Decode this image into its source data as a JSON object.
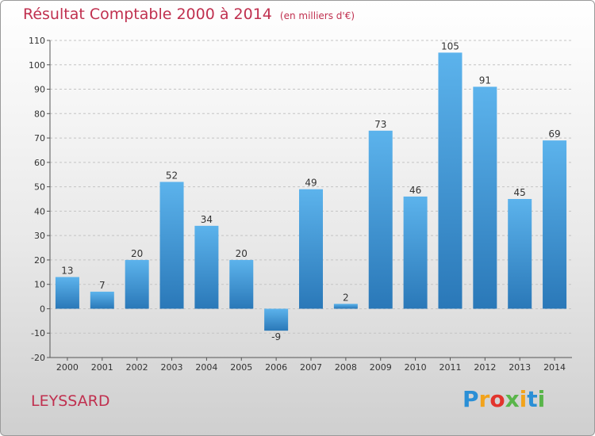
{
  "title": "Résultat Comptable 2000 à 2014",
  "subtitle": "(en milliers d'€)",
  "town": "LEYSSARD",
  "logo": {
    "text": "Proxiti",
    "letters": [
      "P",
      "r",
      "o",
      "x",
      "i",
      "t",
      "i"
    ],
    "colors": [
      "#2a8fd6",
      "#f2a31b",
      "#e2342d",
      "#59b54a",
      "#f2a31b",
      "#2a8fd6",
      "#59b54a"
    ]
  },
  "chart_data": {
    "type": "bar",
    "categories": [
      "2000",
      "2001",
      "2002",
      "2003",
      "2004",
      "2005",
      "2006",
      "2007",
      "2008",
      "2009",
      "2010",
      "2011",
      "2012",
      "2013",
      "2014"
    ],
    "values": [
      13,
      7,
      20,
      52,
      34,
      20,
      -9,
      49,
      2,
      73,
      46,
      105,
      91,
      45,
      69
    ],
    "ylim": [
      -20,
      110
    ],
    "yticks": [
      -20,
      -10,
      0,
      10,
      20,
      30,
      40,
      50,
      60,
      70,
      80,
      90,
      100,
      110
    ],
    "grid": "horizontal dashed",
    "colors": {
      "bar_light": "#5aaee8",
      "bar_dark": "#2a78b8",
      "grid": "#c4c4c4",
      "axis": "#555555"
    }
  }
}
